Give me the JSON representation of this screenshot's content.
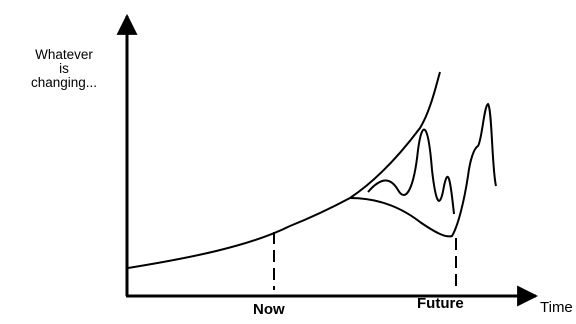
{
  "labels": {
    "y_axis": [
      "Whatever",
      "is",
      "changing..."
    ],
    "now": "Now",
    "future": "Future",
    "time": "Time"
  },
  "colors": {
    "line": "#000000",
    "background": "#ffffff"
  }
}
